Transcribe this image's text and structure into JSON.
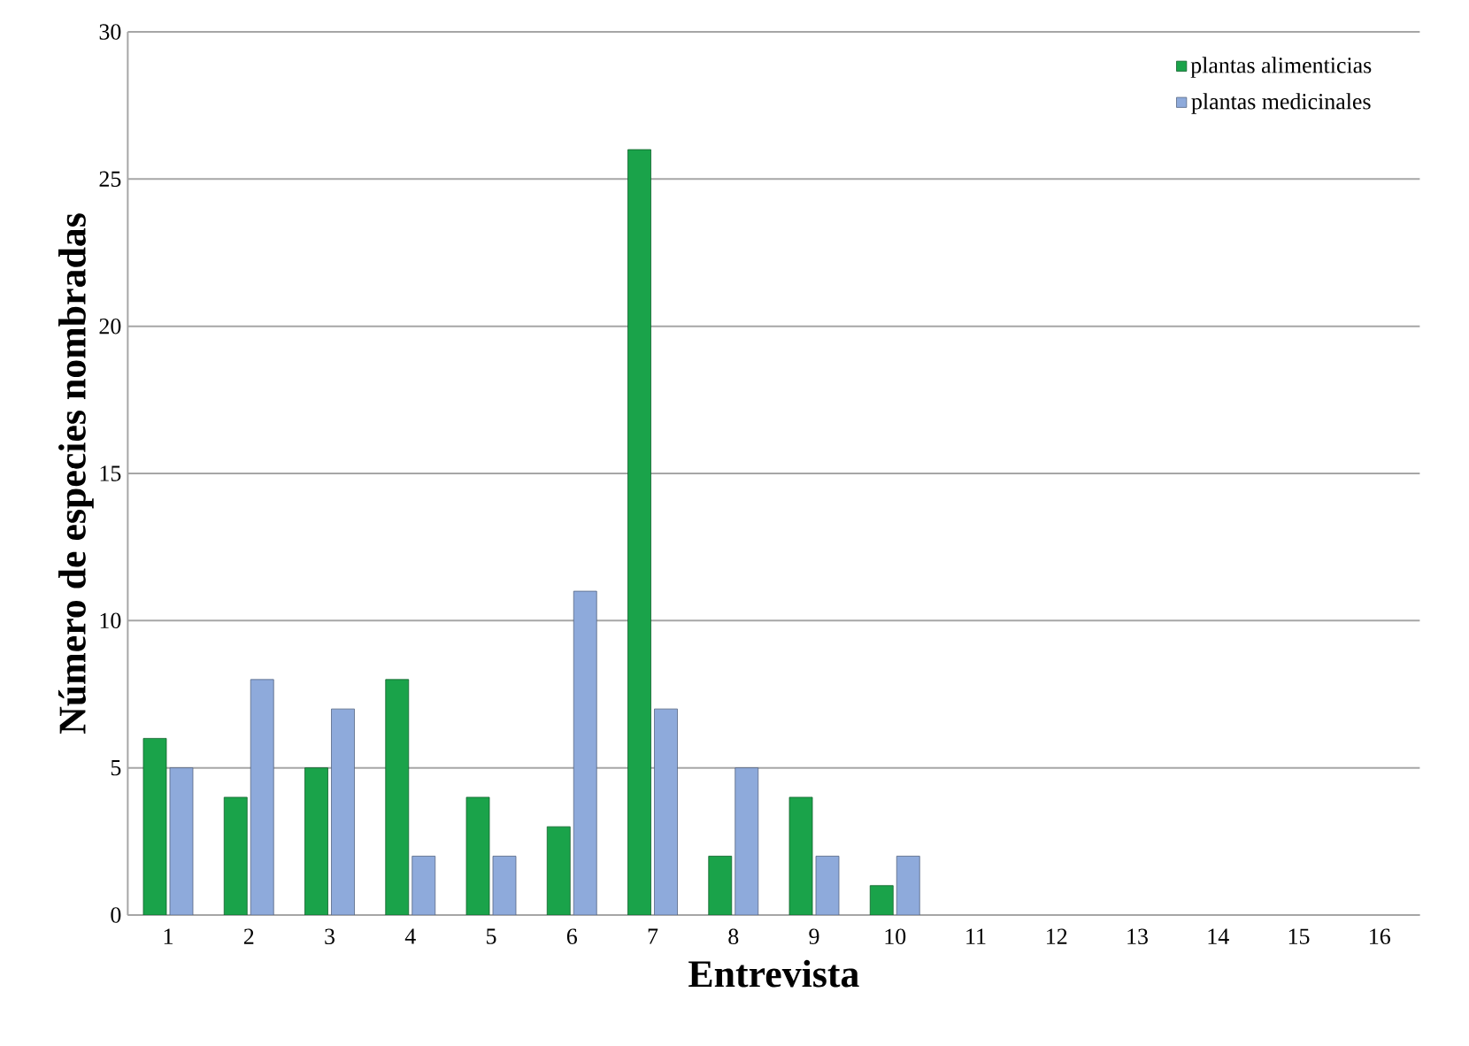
{
  "chart_data": {
    "type": "bar",
    "xlabel": "Entrevista",
    "ylabel": "Número de especies nombradas",
    "categories": [
      "1",
      "2",
      "3",
      "4",
      "5",
      "6",
      "7",
      "8",
      "9",
      "10",
      "11",
      "12",
      "13",
      "14",
      "15",
      "16"
    ],
    "series": [
      {
        "name": "plantas alimenticias",
        "color": "#1aa34a",
        "values": [
          6,
          4,
          5,
          8,
          4,
          3,
          26,
          2,
          4,
          1,
          null,
          null,
          null,
          null,
          null,
          null
        ]
      },
      {
        "name": "plantas medicinales",
        "color": "#8eaadb",
        "values": [
          5,
          8,
          7,
          2,
          2,
          11,
          7,
          5,
          2,
          2,
          null,
          null,
          null,
          null,
          null,
          null
        ]
      }
    ],
    "ylim": [
      0,
      30
    ],
    "yticks": [
      0,
      5,
      10,
      15,
      20,
      25,
      30
    ],
    "grid": "y",
    "legend": "top right"
  }
}
